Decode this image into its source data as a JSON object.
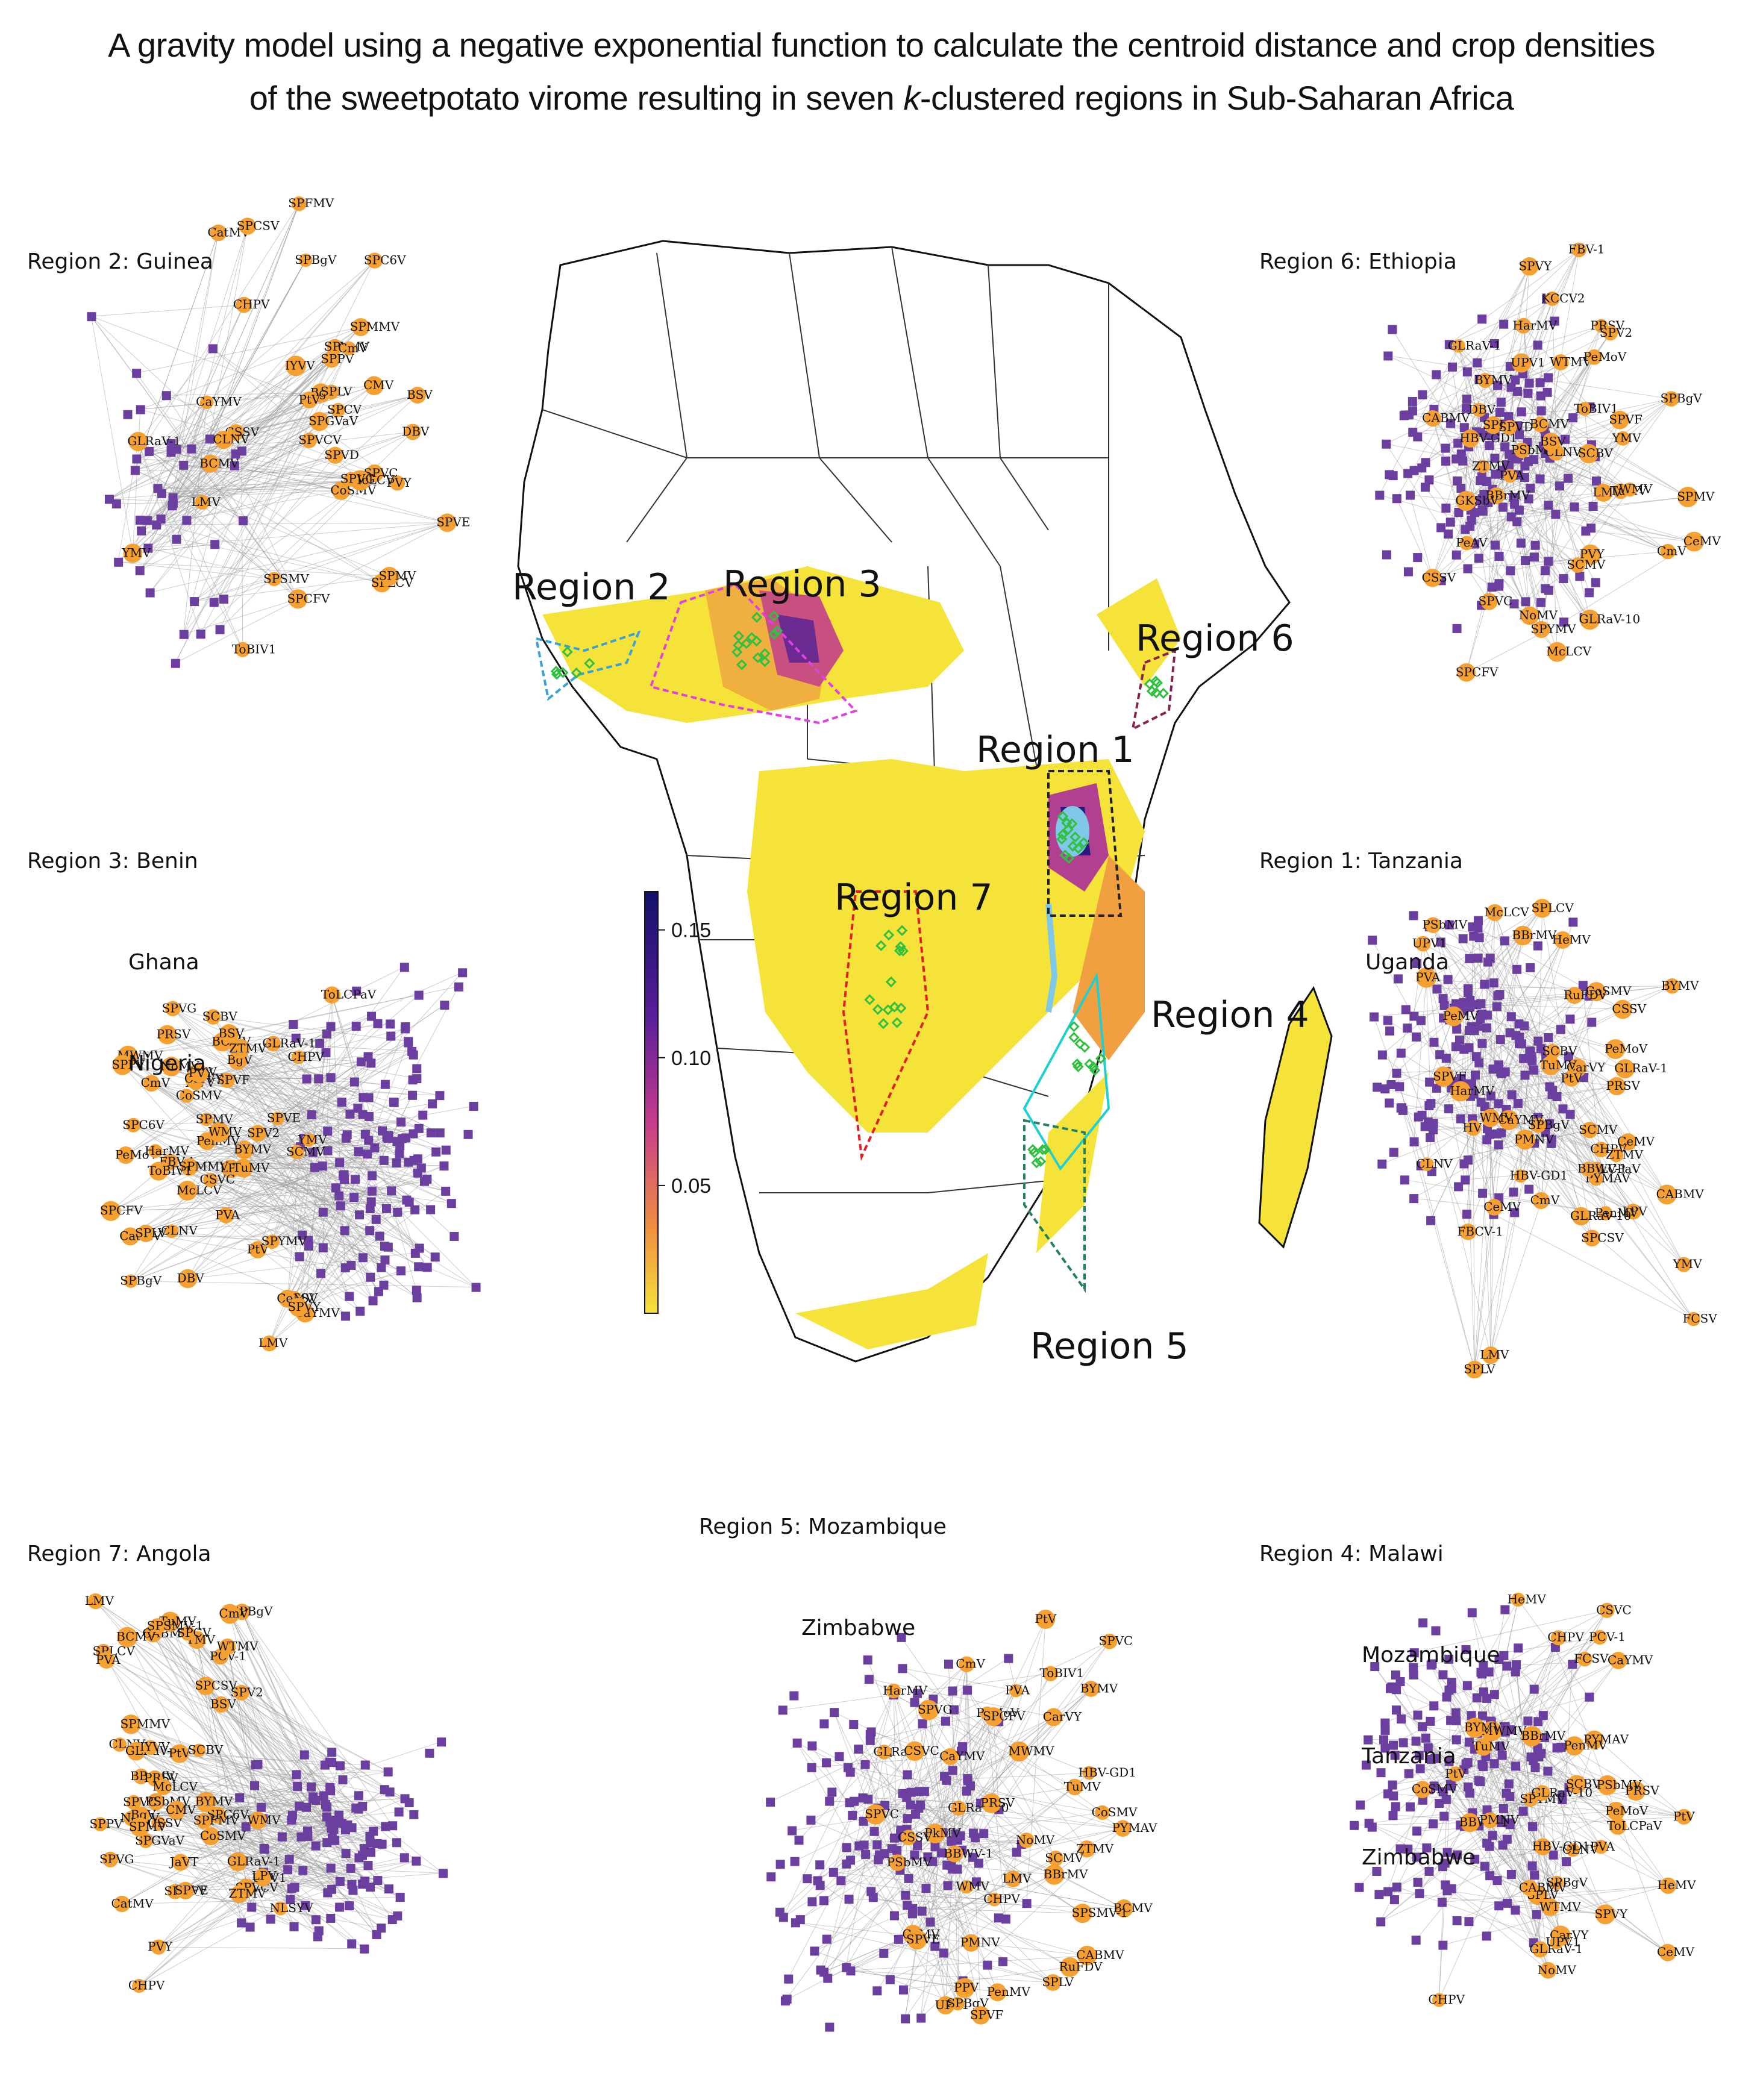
{
  "title": {
    "line1": "A gravity model using a negative exponential function to calculate the centroid  distance and crop densities",
    "line2_pre": "of the sweetpotato virome resulting in seven ",
    "line2_k": "k",
    "line2_post": "-clustered regions in Sub-Saharan Africa"
  },
  "colors": {
    "plant_node": "#6b3fa0",
    "virus_node": "#f5a030",
    "edge": "#9a9a9a",
    "map_low": "#f5e33a",
    "map_mid": "#e0608a",
    "map_high": "#1a1570",
    "region2_outline": "#3aa0d8",
    "region3_outline": "#e040e0",
    "region4_outline": "#20d0d0",
    "region5_outline": "#208060",
    "region6_outline": "#8a2050",
    "region7_outline": "#e02020",
    "sample_points": "#30c040",
    "lake": "#80c8e8"
  },
  "map": {
    "region_labels": [
      "Region 1",
      "Region 2",
      "Region 3",
      "Region 4",
      "Region 5",
      "Region 6",
      "Region 7"
    ],
    "colorbar": {
      "ticks": [
        "0.15",
        "0.10",
        "0.05"
      ],
      "range": [
        0,
        0.165
      ]
    }
  },
  "panels": {
    "region2": {
      "lines": [
        "Region 2: Guinea"
      ],
      "virus_labels": [
        "YMV",
        "CatMV",
        "CHPV",
        "LMV",
        "CSSV",
        "BSV",
        "SPFMV",
        "SPVD",
        "DBV",
        "CMV",
        "SPC6V",
        "PVY",
        "ToBIV1",
        "SPMMV",
        "BgV",
        "SPLV",
        "CoSMV",
        "CLNV",
        "SPSMV",
        "IYVV",
        "SPCV",
        "SPGVaV",
        "SPVC",
        "SPLCV",
        "SPYMV",
        "McLCV",
        "SPVCV",
        "SPPV",
        "SPVE",
        "SPVG",
        "SPCSV",
        "SPCFV",
        "CmV",
        "SPBgV",
        "BCMV",
        "SPMV",
        "CaYMV",
        "GLRaV-1",
        "PtV"
      ]
    },
    "region3": {
      "lines": [
        "Region 3: Benin",
        "Ghana",
        "Nigeria"
      ],
      "virus_labels": [
        "BgV",
        "CSSV",
        "BCMV",
        "DBV",
        "BSV",
        "CmV",
        "CatMV",
        "BYMV",
        "CHPV",
        "CMV",
        "CoSMV",
        "IYVV",
        "CeMV",
        "CLNV",
        "SCMV",
        "NoMV",
        "GLRaV-1",
        "PeMoV",
        "CaYMV",
        "McLCV",
        "LPV",
        "SCBV",
        "FBV-1",
        "CarVY",
        "CSVC",
        "PVA",
        "LMV",
        "MWMV",
        "PtV",
        "HarMV",
        "PRSV",
        "PenMV",
        "ToLCPaV",
        "ZTMV",
        "PVY",
        "WMV",
        "SPVF",
        "TuMV",
        "SPCFV",
        "SPMV",
        "SPC6V",
        "SPLV",
        "SPBgV",
        "SPV2",
        "SPVY",
        "SPMMV",
        "SPPV",
        "SPVG",
        "YMV",
        "ToBIV1",
        "SPYMV",
        "SPVE"
      ]
    },
    "region6": {
      "lines": [
        "Region 6: Ethiopia"
      ],
      "virus_labels": [
        "ZTMV",
        "UPV1",
        "CABMV",
        "PSbMV",
        "PRSV",
        "GLRaV-10",
        "BBrMV",
        "PeAV",
        "WTMV",
        "TuMV",
        "HarMV",
        "KCCV2",
        "GKSbV",
        "PVY",
        "SPYMV",
        "HBV-GD1",
        "PeMoV",
        "YMV",
        "SPCFV",
        "McLCV",
        "SPBgV",
        "FBV-1",
        "WMV",
        "LMV",
        "CLNV",
        "ToBIV1",
        "SCBV",
        "CeMV",
        "SPV2",
        "SPVF",
        "CSSV",
        "BYMV",
        "PVA",
        "SCMV",
        "NoMV",
        "CmV",
        "BSV",
        "DBV",
        "SPLV",
        "SPVY",
        "GLRaV-1",
        "SPMV",
        "SPVC",
        "SPVD",
        "BCMV"
      ]
    },
    "region1": {
      "lines": [
        "Region 1: Tanzania",
        "Uganda"
      ],
      "virus_labels": [
        "McLCV",
        "YMV",
        "CSSV",
        "PVA",
        "HarMV",
        "CmV",
        "SCMV",
        "SPLCV",
        "CeMV",
        "ToLCPaV",
        "SPCSV",
        "SPBgV",
        "CarVY",
        "CaYMV",
        "LPV",
        "SCBV",
        "BYMV",
        "CoSMV",
        "PtV",
        "SPLV",
        "GLRaV-1",
        "LMV",
        "WMV",
        "CeMV",
        "FCSV",
        "SPVF",
        "CHPV",
        "CLNV",
        "CABMV",
        "PenMV",
        "HBV-GD1",
        "PRSV",
        "TuMV",
        "PeMoV",
        "UPV1",
        "PMNV",
        "FBCV-1",
        "PYMAV",
        "HV",
        "ZTMV",
        "HeMV",
        "BBWV-1",
        "RuFDV",
        "BBrMV",
        "PSbMV",
        "PeMV",
        "GLRaV-10"
      ]
    },
    "region7": {
      "lines": [
        "Region 7: Angola"
      ],
      "virus_labels": [
        "JaVT",
        "CABMV",
        "SPCFV",
        "TuMV",
        "YMV",
        "SCBV",
        "SPVCV",
        "PSbMV",
        "BBrMV",
        "SPC6V",
        "PRSV",
        "SPMMV",
        "CSSV",
        "SPBgV",
        "LMV",
        "SPVC",
        "CLNV",
        "GLRaV-10",
        "CHPV",
        "SPCV",
        "PtV",
        "PVY",
        "NLSYV",
        "PCV-1",
        "SPVE",
        "ZTMV",
        "SPLCV",
        "SPV2",
        "SPVG",
        "SPSMV-1",
        "GLRaV-1",
        "NoMV",
        "WTMV",
        "CmV",
        "SPPV",
        "SPCSV",
        "UPV1",
        "SPFMV",
        "CatMV",
        "PVA",
        "CoSMV",
        "BYMV",
        "WMV",
        "LPV",
        "BCMV",
        "SPGVaV",
        "McLCV",
        "BgV",
        "CMV",
        "IYVV",
        "SPMV",
        "BSV"
      ]
    },
    "region5": {
      "lines": [
        "Region 5: Mozambique",
        "Zimbabwe"
      ],
      "virus_labels": [
        "BBWV-1",
        "PSbMV",
        "ZTMV",
        "CABMV",
        "PYMAV",
        "PPV",
        "GLRaV-10",
        "BBrMV",
        "UPV1",
        "PeMoV",
        "PkMV",
        "PMNV",
        "RuFDV",
        "SCMV",
        "TuMV",
        "PVA",
        "LMV",
        "PRSV",
        "CmV",
        "SPLV",
        "CSSV",
        "CoSMV",
        "CeMV",
        "WMV",
        "SPCFV",
        "SPVC",
        "CHPV",
        "PenMV",
        "SPBgV",
        "PtV",
        "SPVF",
        "HBV-GD1",
        "BCMV",
        "GLRaV-1",
        "CaYMV",
        "SPSMV-1",
        "BYMV",
        "SPVC",
        "SPVE",
        "ToBIV1",
        "CSVC",
        "HarMV",
        "NoMV",
        "SPVG",
        "MWMV",
        "CarVY"
      ]
    },
    "region4": {
      "lines": [
        "Region 4: Malawi",
        "Mozambique",
        "Tanzania",
        "Zimbabwe"
      ],
      "virus_labels": [
        "PtV",
        "SPLV",
        "GLRaV-1",
        "CaYMV",
        "CoSMV",
        "SPBgV",
        "PVA",
        "CHPV",
        "CeMV",
        "MWMV",
        "SCBV",
        "ToLCPaV",
        "SPYMV",
        "BYMV",
        "CSVC",
        "CLNV",
        "SPVY",
        "NoMV",
        "PYMAV",
        "HBV-GD1",
        "CHPV",
        "CarVY",
        "FCSV",
        "PtV",
        "BBWV-1",
        "WTMV",
        "HeMV",
        "PMNV",
        "PenMV",
        "TuMV",
        "UPV1",
        "PeMoV",
        "HeMV",
        "PRSV",
        "PSbMV",
        "BBrMV",
        "GLRaV-10",
        "CABMV",
        "PCV-1"
      ]
    }
  }
}
